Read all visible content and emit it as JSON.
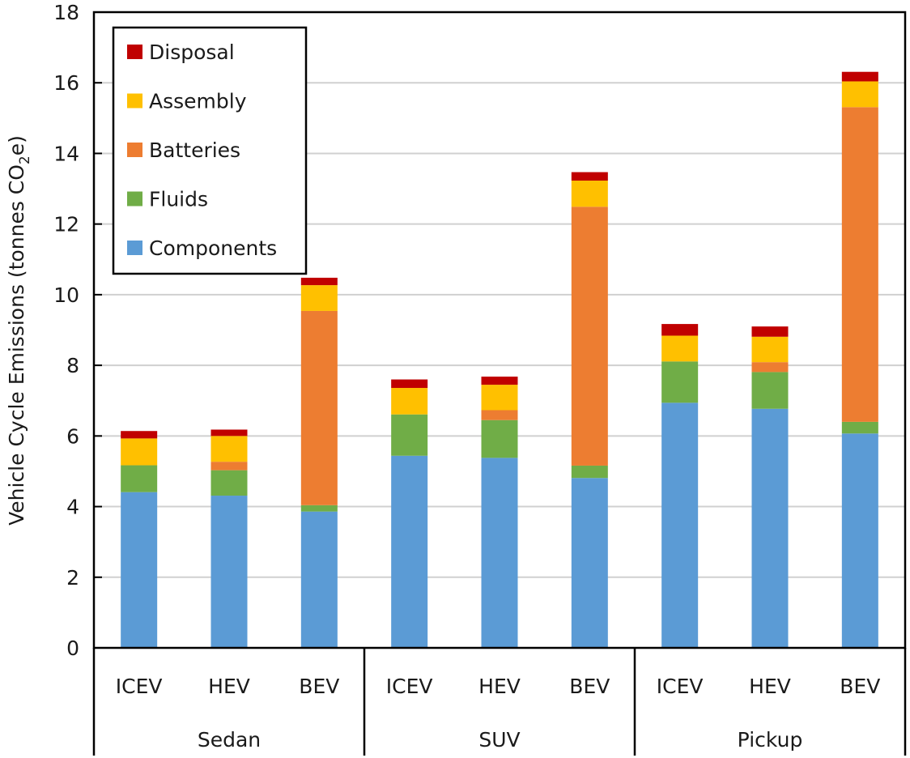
{
  "chart_data": {
    "type": "bar",
    "stacked": true,
    "title": "",
    "xlabel": "",
    "ylabel": "Vehicle Cycle Emissions (tonnes CO2e)",
    "ylabel_parts": {
      "before": "Vehicle Cycle Emissions (tonnes CO",
      "subscript": "2",
      "after": "e)"
    },
    "ylim": [
      0,
      18
    ],
    "yticks": [
      0,
      2,
      4,
      6,
      8,
      10,
      12,
      14,
      16,
      18
    ],
    "grid": true,
    "legend_position": "top-left",
    "groups": [
      {
        "name": "Sedan",
        "categories": [
          "ICEV",
          "HEV",
          "BEV"
        ]
      },
      {
        "name": "SUV",
        "categories": [
          "ICEV",
          "HEV",
          "BEV"
        ]
      },
      {
        "name": "Pickup",
        "categories": [
          "ICEV",
          "HEV",
          "BEV"
        ]
      }
    ],
    "categories": [
      "Sedan ICEV",
      "Sedan HEV",
      "Sedan BEV",
      "SUV ICEV",
      "SUV HEV",
      "SUV BEV",
      "Pickup ICEV",
      "Pickup HEV",
      "Pickup BEV"
    ],
    "series": [
      {
        "name": "Components",
        "color": "#5B9BD5",
        "values": [
          4.41,
          4.31,
          3.86,
          5.44,
          5.38,
          4.81,
          6.94,
          6.77,
          6.07
        ]
      },
      {
        "name": "Fluids",
        "color": "#70AD47",
        "values": [
          0.76,
          0.72,
          0.18,
          1.17,
          1.07,
          0.35,
          1.17,
          1.04,
          0.33
        ]
      },
      {
        "name": "Batteries",
        "color": "#ED7D31",
        "values": [
          0.0,
          0.24,
          5.5,
          0.0,
          0.28,
          7.33,
          0.0,
          0.28,
          8.91
        ]
      },
      {
        "name": "Assembly",
        "color": "#FFC000",
        "values": [
          0.76,
          0.73,
          0.73,
          0.75,
          0.72,
          0.74,
          0.73,
          0.72,
          0.73
        ]
      },
      {
        "name": "Disposal",
        "color": "#C00000",
        "values": [
          0.21,
          0.18,
          0.21,
          0.24,
          0.23,
          0.24,
          0.33,
          0.29,
          0.27
        ]
      }
    ],
    "legend_order": [
      "Disposal",
      "Assembly",
      "Batteries",
      "Fluids",
      "Components"
    ]
  }
}
